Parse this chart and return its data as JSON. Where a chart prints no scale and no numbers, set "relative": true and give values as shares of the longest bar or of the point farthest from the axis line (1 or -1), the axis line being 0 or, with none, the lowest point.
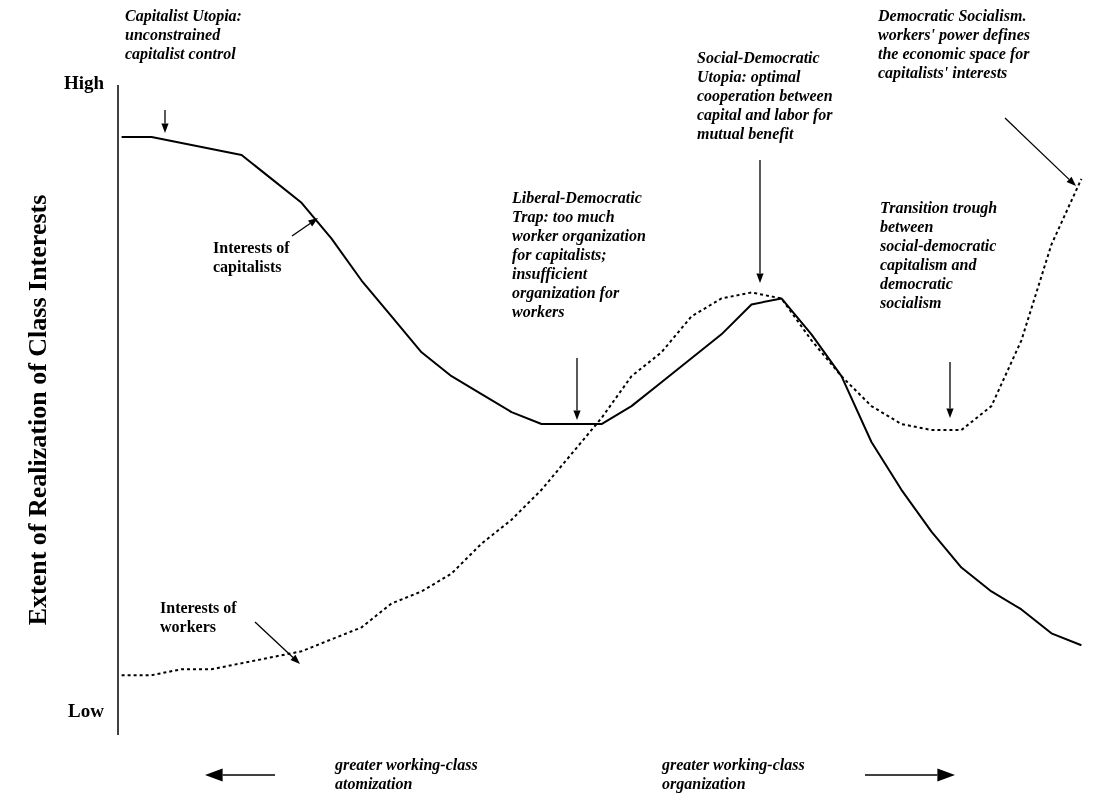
{
  "chart_data": {
    "type": "line",
    "ylabel": "Extent of Realization of Class Interests",
    "relative": true,
    "annotations": [
      "Capitalist Utopia: unconstrained capitalist control",
      "Liberal-Democratic Trap: too much worker organization for capitalists; insufficient organization for workers",
      "Social-Democratic Utopia: optimal cooperation between capital and labor for mutual benefit",
      "Democratic Socialism. workers' power defines the economic space for capitalists' interests",
      "Transition trough between social-democratic capitalism and democratic socialism",
      "greater working-class atomization",
      "greater working-class organization",
      "High",
      "Low"
    ],
    "categories": [
      null,
      null,
      null,
      null,
      null,
      null,
      null,
      null,
      null,
      null,
      null,
      null,
      null,
      null,
      null,
      null,
      null,
      null,
      null,
      null,
      null,
      null,
      null,
      null,
      null,
      null,
      null,
      null,
      null,
      null,
      null,
      null,
      null
    ],
    "series": [
      {
        "name": "Interests of capitalists",
        "color": "#000000",
        "line_style": "solid",
        "values": [
          1.0,
          1.0,
          0.99,
          0.98,
          0.97,
          0.93,
          0.89,
          0.83,
          0.76,
          0.7,
          0.64,
          0.6,
          0.57,
          0.54,
          0.52,
          0.52,
          0.52,
          0.55,
          0.59,
          0.63,
          0.67,
          0.72,
          0.73,
          0.67,
          0.6,
          0.49,
          0.41,
          0.34,
          0.28,
          0.24,
          0.21,
          0.17,
          0.15
        ]
      },
      {
        "name": "Interests of workers",
        "color": "#000000",
        "line_style": "dotted",
        "values": [
          0.1,
          0.1,
          0.11,
          0.11,
          0.12,
          0.13,
          0.14,
          0.16,
          0.18,
          0.22,
          0.24,
          0.27,
          0.32,
          0.36,
          0.41,
          0.47,
          0.53,
          0.6,
          0.64,
          0.7,
          0.73,
          0.74,
          0.73,
          0.66,
          0.6,
          0.55,
          0.52,
          0.51,
          0.51,
          0.55,
          0.66,
          0.82,
          0.93
        ]
      }
    ],
    "marker": "none"
  }
}
